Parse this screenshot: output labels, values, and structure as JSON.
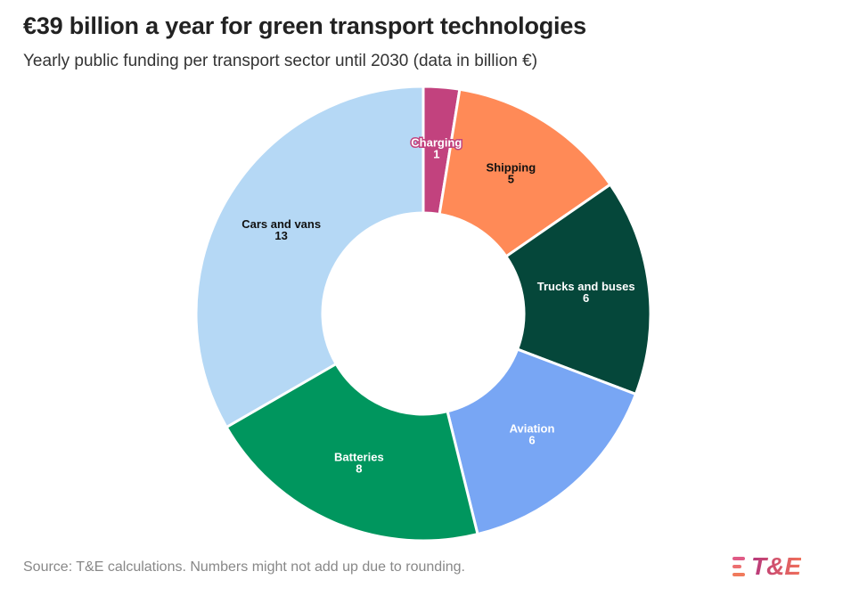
{
  "title": "€39 billion a year for green transport technologies",
  "subtitle": "Yearly public funding per transport sector until 2030 (data in billion €)",
  "source": "Source: T&E calculations. Numbers might not add up due to rounding.",
  "logo_text": "T&E",
  "chart_data": {
    "type": "pie",
    "donut": true,
    "title": "€39 billion a year for green transport technologies",
    "subtitle": "Yearly public funding per transport sector until 2030 (data in billion €)",
    "unit": "billion €",
    "slices": [
      {
        "label": "Charging",
        "value": 1,
        "color": "#c2427e",
        "label_color": "#ffffff",
        "label_outline": true
      },
      {
        "label": "Shipping",
        "value": 5,
        "color": "#ff8a57",
        "label_color": "#111111"
      },
      {
        "label": "Trucks and buses",
        "value": 6,
        "color": "#05473a",
        "label_color": "#ffffff"
      },
      {
        "label": "Aviation",
        "value": 6,
        "color": "#78a6f4",
        "label_color": "#ffffff"
      },
      {
        "label": "Batteries",
        "value": 8,
        "color": "#00965e",
        "label_color": "#ffffff"
      },
      {
        "label": "Cars and vans",
        "value": 13,
        "color": "#b5d8f5",
        "label_color": "#111111"
      }
    ]
  }
}
